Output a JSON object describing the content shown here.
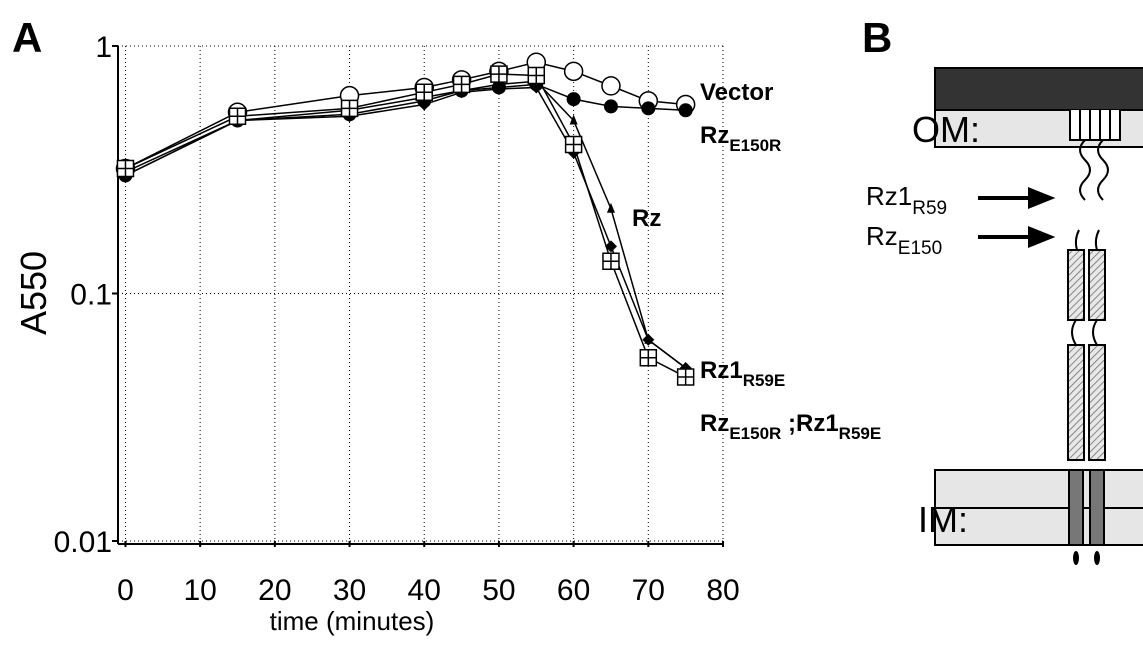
{
  "panel_labels": [
    "A",
    "B"
  ],
  "chart_data": {
    "type": "line",
    "x_label": "time (minutes)",
    "y_label": "A550",
    "x": [
      0,
      15,
      30,
      40,
      45,
      50,
      55,
      60,
      65,
      70,
      75
    ],
    "xlim": [
      -1,
      80
    ],
    "xticks": [
      0,
      10,
      20,
      30,
      40,
      50,
      60,
      70,
      80
    ],
    "ylim": [
      0.01,
      1
    ],
    "yticks": [
      0.01,
      0.1,
      1
    ],
    "log_y": true,
    "grid": true,
    "series": [
      {
        "name_parts": [
          "Vector"
        ],
        "color": "#000000",
        "marker": "open-circle",
        "values": [
          0.32,
          0.54,
          0.63,
          0.68,
          0.73,
          0.79,
          0.86,
          0.79,
          0.69,
          0.6,
          0.58
        ]
      },
      {
        "name_parts": [
          "Rz",
          "E150R"
        ],
        "color": "#000000",
        "marker": "filled-circle",
        "values": [
          0.3,
          0.5,
          0.53,
          0.6,
          0.66,
          0.68,
          0.7,
          0.61,
          0.57,
          0.56,
          0.55
        ]
      },
      {
        "name_parts": [
          "Rz"
        ],
        "color": "#000000",
        "marker": "triangle",
        "values": [
          0.31,
          0.5,
          0.55,
          0.62,
          0.66,
          0.7,
          0.72,
          0.5,
          0.22,
          0.065,
          0.05
        ]
      },
      {
        "name_parts": [
          "Rz1",
          "R59E"
        ],
        "color": "#000000",
        "marker": "diamond",
        "values": [
          0.3,
          0.5,
          0.52,
          0.58,
          0.65,
          0.67,
          0.68,
          0.37,
          0.155,
          0.065,
          0.05
        ]
      },
      {
        "name_parts": [
          "Rz",
          "E150R",
          " ;Rz1",
          "R59E"
        ],
        "color": "#000000",
        "marker": "crossed-square",
        "values": [
          0.32,
          0.52,
          0.56,
          0.65,
          0.7,
          0.77,
          0.76,
          0.4,
          0.135,
          0.055,
          0.046
        ]
      }
    ]
  },
  "diagram": {
    "om": "OM:",
    "im": "IM:",
    "rz1": [
      "Rz1",
      "R59"
    ],
    "rz": [
      "Rz",
      "E150"
    ]
  }
}
